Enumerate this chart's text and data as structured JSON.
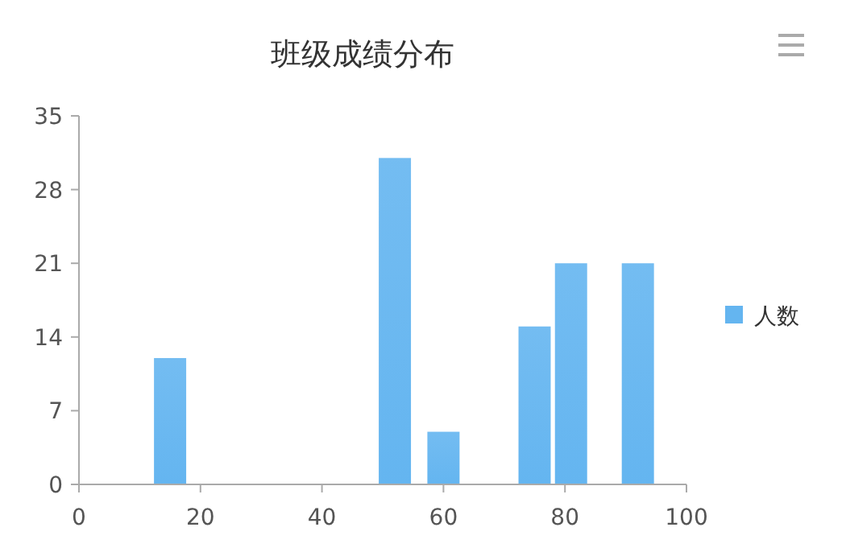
{
  "chart_data": {
    "type": "bar",
    "title": "班级成绩分布",
    "x": [
      15,
      52,
      60,
      75,
      81,
      92
    ],
    "series": [
      {
        "name": "人数",
        "color": "#64b5f0",
        "values": [
          12,
          31,
          5,
          15,
          21,
          21
        ]
      }
    ],
    "xlim": [
      0,
      100
    ],
    "xticks": [
      0,
      20,
      40,
      60,
      80,
      100
    ],
    "ylim": [
      0,
      35
    ],
    "yticks": [
      0,
      7,
      14,
      21,
      28,
      35
    ],
    "grid": false,
    "legend": "right"
  }
}
